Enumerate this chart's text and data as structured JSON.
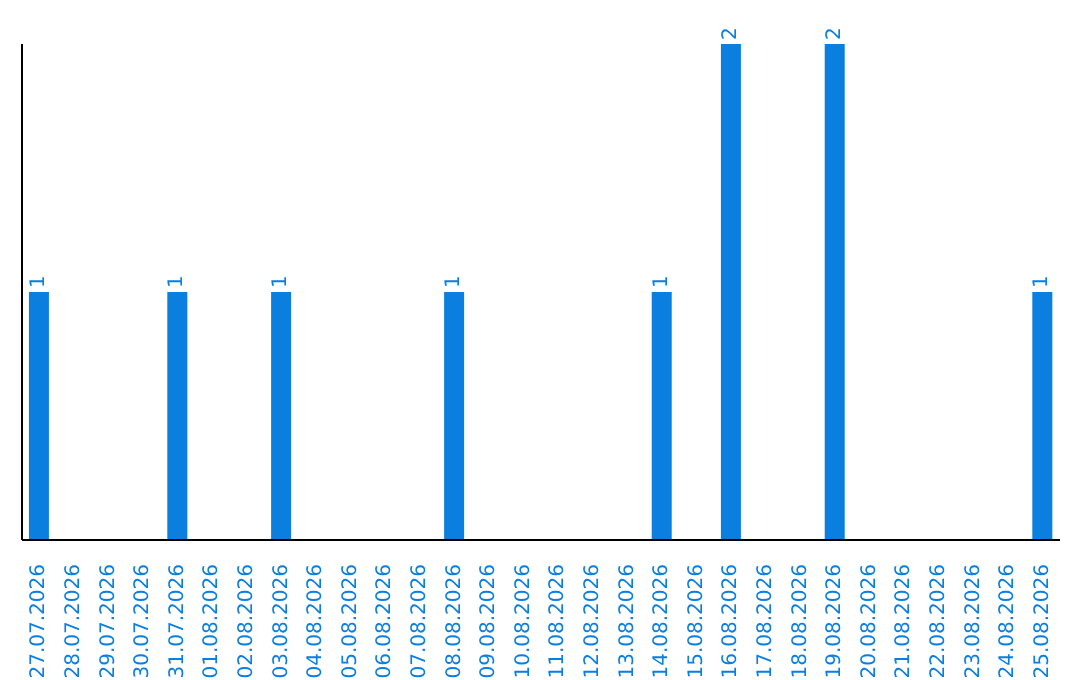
{
  "chart_data": {
    "type": "bar",
    "categories": [
      "27.07.2026",
      "28.07.2026",
      "29.07.2026",
      "30.07.2026",
      "31.07.2026",
      "01.08.2026",
      "02.08.2026",
      "03.08.2026",
      "04.08.2026",
      "05.08.2026",
      "06.08.2026",
      "07.08.2026",
      "08.08.2026",
      "09.08.2026",
      "10.08.2026",
      "11.08.2026",
      "12.08.2026",
      "13.08.2026",
      "14.08.2026",
      "15.08.2026",
      "16.08.2026",
      "17.08.2026",
      "18.08.2026",
      "19.08.2026",
      "20.08.2026",
      "21.08.2026",
      "22.08.2026",
      "23.08.2026",
      "24.08.2026",
      "25.08.2026"
    ],
    "values": [
      1,
      0,
      0,
      0,
      1,
      0,
      0,
      1,
      0,
      0,
      0,
      0,
      1,
      0,
      0,
      0,
      0,
      0,
      1,
      0,
      2,
      0,
      0,
      2,
      0,
      0,
      0,
      0,
      0,
      1
    ],
    "value_labels": [
      "1",
      null,
      null,
      null,
      "1",
      null,
      null,
      "1",
      null,
      null,
      null,
      null,
      "1",
      null,
      null,
      null,
      null,
      null,
      "1",
      null,
      "2",
      null,
      null,
      "2",
      null,
      null,
      null,
      null,
      null,
      "1"
    ],
    "color": "#0a7fe0",
    "grid": false,
    "tick_labels": "x"
  }
}
